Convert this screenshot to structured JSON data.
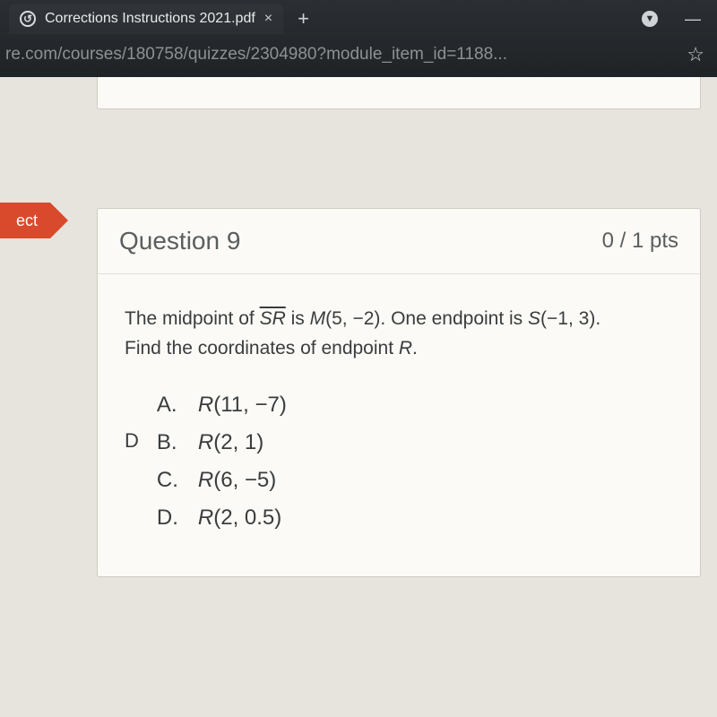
{
  "chrome": {
    "tab_title": "Corrections Instructions 2021.pdf",
    "tab_close": "×",
    "new_tab": "+",
    "down_arrow": "▼",
    "minimize": "—",
    "url": "re.com/courses/180758/quizzes/2304980?module_item_id=1188...",
    "star": "☆",
    "favicon_glyph": "↺"
  },
  "colors": {
    "flag_bg": "#d84a2b",
    "page_bg": "#e7e4de",
    "card_bg": "#fbfaf7",
    "card_border": "#cfcbc1",
    "text_muted": "#5a5e5f",
    "text_body": "#3a3d3e"
  },
  "flag": {
    "label": "ect"
  },
  "question": {
    "title": "Question 9",
    "points": "0 / 1 pts",
    "prompt_pre": "The midpoint of ",
    "prompt_seg": "SR",
    "prompt_mid1": " is ",
    "prompt_m": "M",
    "prompt_mval": "(5, −2)",
    "prompt_mid2": ". One endpoint is ",
    "prompt_s": "S",
    "prompt_sval": "(−1, 3)",
    "prompt_mid3": ".",
    "prompt_line2_pre": "Find the coordinates of endpoint ",
    "prompt_r": "R",
    "prompt_line2_post": ".",
    "selected": "D",
    "options": [
      {
        "label": "A.",
        "var": "R",
        "val": "(11, −7)"
      },
      {
        "label": "B.",
        "var": "R",
        "val": "(2, 1)"
      },
      {
        "label": "C.",
        "var": "R",
        "val": "(6, −5)"
      },
      {
        "label": "D.",
        "var": "R",
        "val": "(2, 0.5)"
      }
    ]
  }
}
